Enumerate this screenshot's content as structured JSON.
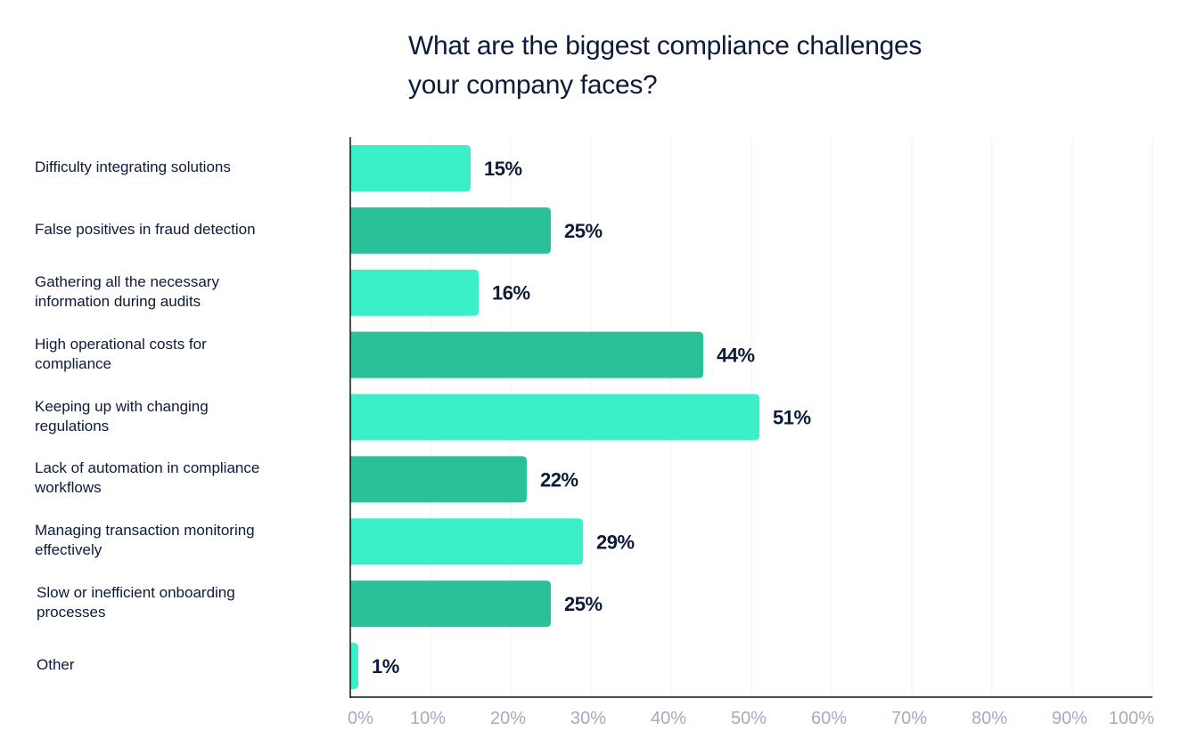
{
  "chart_data": {
    "type": "bar",
    "orientation": "horizontal",
    "title": "What are the biggest compliance challenges your company faces?",
    "title_lines": [
      "What are the biggest compliance challenges",
      "your company faces?"
    ],
    "xlabel": "",
    "ylabel": "",
    "xlim": [
      0,
      100
    ],
    "grid": true,
    "legend": "none",
    "categories": [
      "Difficulty integrating solutions",
      "False positives in fraud detection",
      "Gathering all the necessary information during audits",
      "High operational costs for compliance",
      "Keeping up with changing regulations",
      "Lack of automation in compliance workflows",
      "Managing transaction monitoring effectively",
      "Slow or inefficient onboarding processes",
      "Other"
    ],
    "category_lines": [
      [
        "Difficulty integrating solutions"
      ],
      [
        "False positives in fraud detection"
      ],
      [
        "Gathering all the necessary",
        "information during audits"
      ],
      [
        "High operational costs for",
        "compliance"
      ],
      [
        "Keeping up with changing",
        "regulations"
      ],
      [
        "Lack of automation in compliance",
        "workflows"
      ],
      [
        "Managing transaction monitoring",
        "effectively"
      ],
      [
        "Slow or inefficient onboarding",
        "processes"
      ],
      [
        "Other"
      ]
    ],
    "values": [
      15,
      25,
      16,
      44,
      51,
      22,
      29,
      25,
      1
    ],
    "value_labels": [
      "15%",
      "25%",
      "16%",
      "44%",
      "51%",
      "22%",
      "29%",
      "25%",
      "1%"
    ],
    "x_ticks": [
      0,
      10,
      20,
      30,
      40,
      50,
      60,
      70,
      80,
      90,
      100
    ],
    "x_tick_labels": [
      "0%",
      "10%",
      "20%",
      "30%",
      "40%",
      "50%",
      "60%",
      "70%",
      "80%",
      "90%",
      "100%"
    ],
    "colors": {
      "bar_light": "#3bf0c8",
      "bar_dark": "#2ac199",
      "text": "#0d1a3a",
      "tick": "#a3abbd",
      "grid": "#eef0f3",
      "axis": "#111111"
    }
  }
}
